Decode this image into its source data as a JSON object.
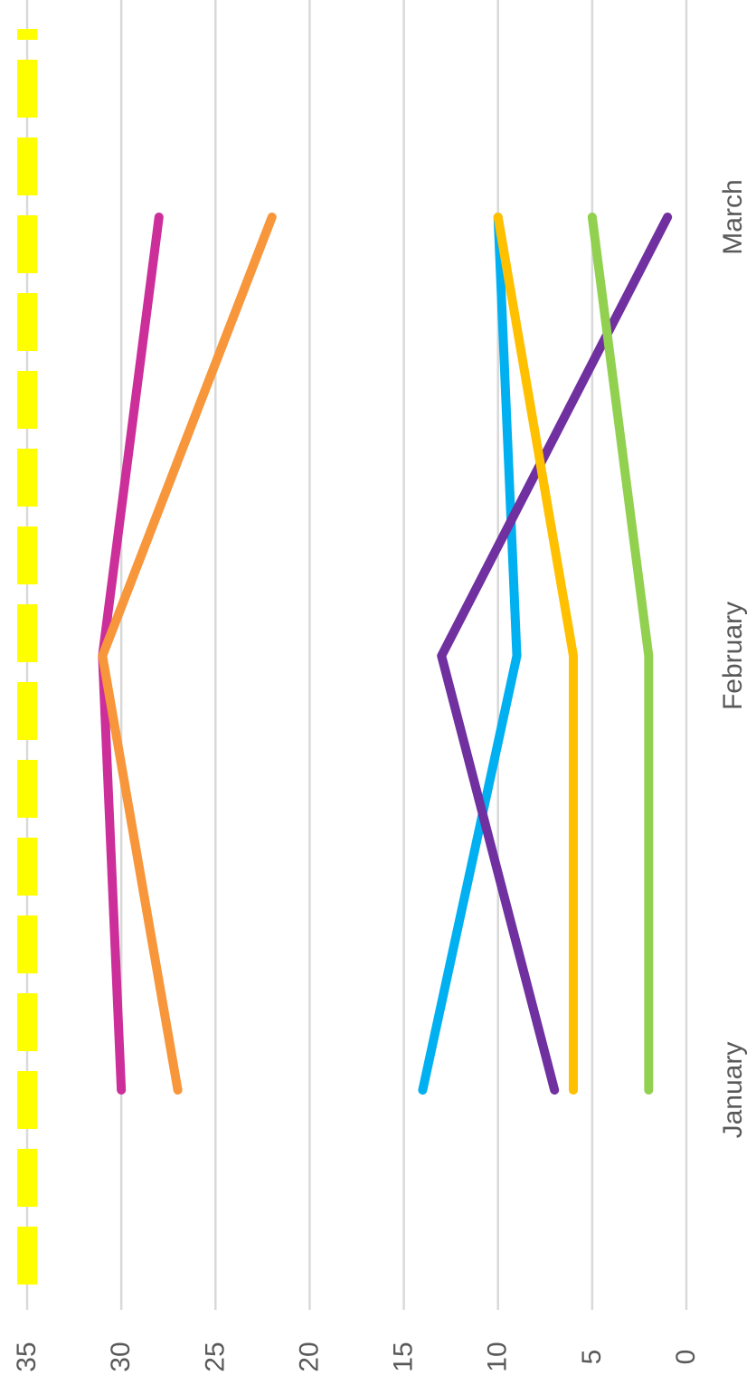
{
  "chart_data": {
    "type": "line",
    "orientation": "rotated-90-clockwise",
    "title": "",
    "xlabel": "",
    "ylabel": "",
    "categories": [
      "January",
      "February",
      "March"
    ],
    "ylim": [
      0,
      35
    ],
    "y_ticks": [
      "0",
      "5",
      "10",
      "15",
      "20",
      "25",
      "30",
      "35"
    ],
    "grid": true,
    "legend": "none",
    "series": [
      {
        "color": "#CC2E9A",
        "values": [
          30,
          31,
          28
        ],
        "dashed": false
      },
      {
        "color": "#F7963B",
        "values": [
          27,
          31,
          22
        ],
        "dashed": false
      },
      {
        "color": "#00B0F0",
        "values": [
          14,
          9,
          10
        ],
        "dashed": false
      },
      {
        "color": "#7030A0",
        "values": [
          7,
          13,
          1
        ],
        "dashed": false
      },
      {
        "color": "#FFC000",
        "values": [
          6,
          6,
          10
        ],
        "dashed": false
      },
      {
        "color": "#92D050",
        "values": [
          2,
          2,
          5
        ],
        "dashed": false
      },
      {
        "color": "#FFFF00",
        "values": [
          35,
          35,
          35
        ],
        "dashed": true
      }
    ]
  }
}
